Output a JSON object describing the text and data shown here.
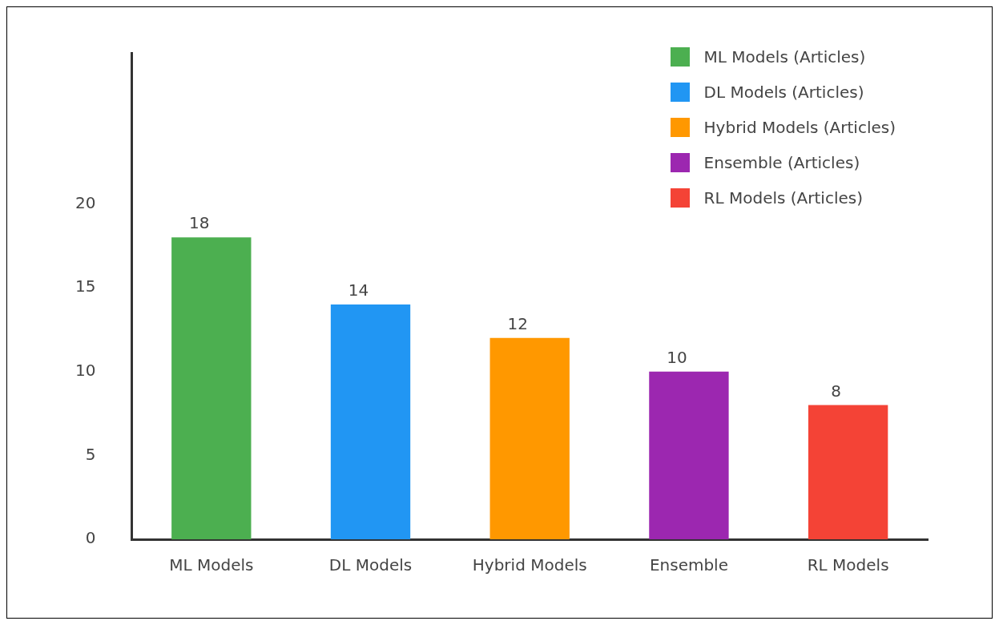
{
  "chart_data": {
    "type": "bar",
    "categories": [
      "ML Models",
      "DL Models",
      "Hybrid Models",
      "Ensemble",
      "RL Models"
    ],
    "series": [
      {
        "name": "ML Models (Articles)",
        "color": "#4caf50",
        "values": [
          18,
          null,
          null,
          null,
          null
        ]
      },
      {
        "name": "DL Models (Articles)",
        "color": "#2196f3",
        "values": [
          null,
          14,
          null,
          null,
          null
        ]
      },
      {
        "name": "Hybrid Models (Articles)",
        "color": "#ff9800",
        "values": [
          null,
          null,
          12,
          null,
          null
        ]
      },
      {
        "name": "Ensemble (Articles)",
        "color": "#9c27b0",
        "values": [
          null,
          null,
          null,
          10,
          null
        ]
      },
      {
        "name": "RL Models (Articles)",
        "color": "#f44336",
        "values": [
          null,
          null,
          null,
          null,
          8
        ]
      }
    ],
    "ylim": [
      0,
      29
    ],
    "yticks": [
      0,
      5,
      10,
      15,
      20
    ],
    "grid": false,
    "data_labels": true,
    "legend": "top right"
  }
}
